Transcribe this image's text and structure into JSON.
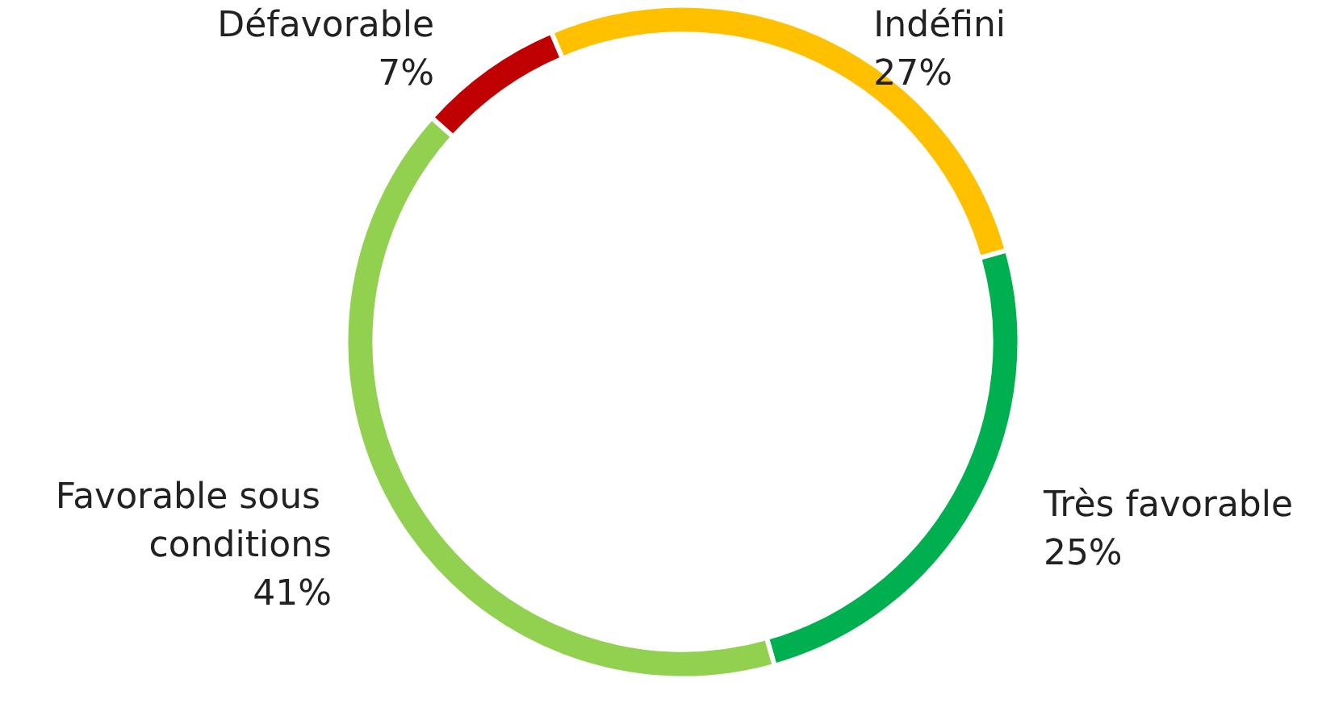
{
  "chart_data": {
    "type": "donut",
    "categories": [
      "Indéfini",
      "Très favorable",
      "Favorable sous conditions",
      "Défavorable"
    ],
    "values": [
      27,
      25,
      41,
      7
    ],
    "colors": [
      "#ffc000",
      "#00b050",
      "#92d050",
      "#c00000"
    ],
    "value_labels": [
      "27%",
      "25%",
      "41%",
      "7%"
    ],
    "legend": false
  }
}
